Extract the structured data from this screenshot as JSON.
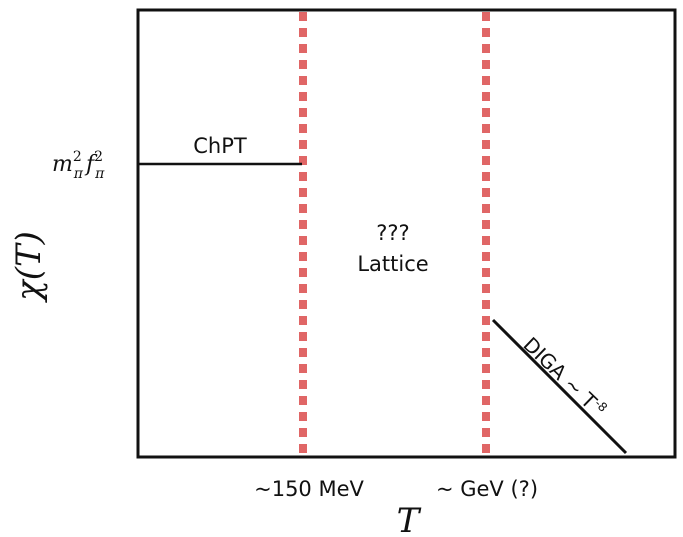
{
  "axes": {
    "y_label": "χ(T)",
    "x_label": "T",
    "y_tick": {
      "base_m": "m",
      "sub_m": "π",
      "sup_m": "2",
      "base_f": "f",
      "sub_f": "π",
      "sup_f": "2"
    },
    "x_ticks": [
      "~150 MeV",
      "~ GeV (?)"
    ]
  },
  "regions": {
    "chpt_label": "ChPT",
    "lattice_q": "???",
    "lattice_label": "Lattice",
    "diga_label": "DIGA ~ T",
    "diga_exp": "-8"
  },
  "colors": {
    "frame": "#111111",
    "dashed": "#e06666",
    "curve": "#111111"
  }
}
